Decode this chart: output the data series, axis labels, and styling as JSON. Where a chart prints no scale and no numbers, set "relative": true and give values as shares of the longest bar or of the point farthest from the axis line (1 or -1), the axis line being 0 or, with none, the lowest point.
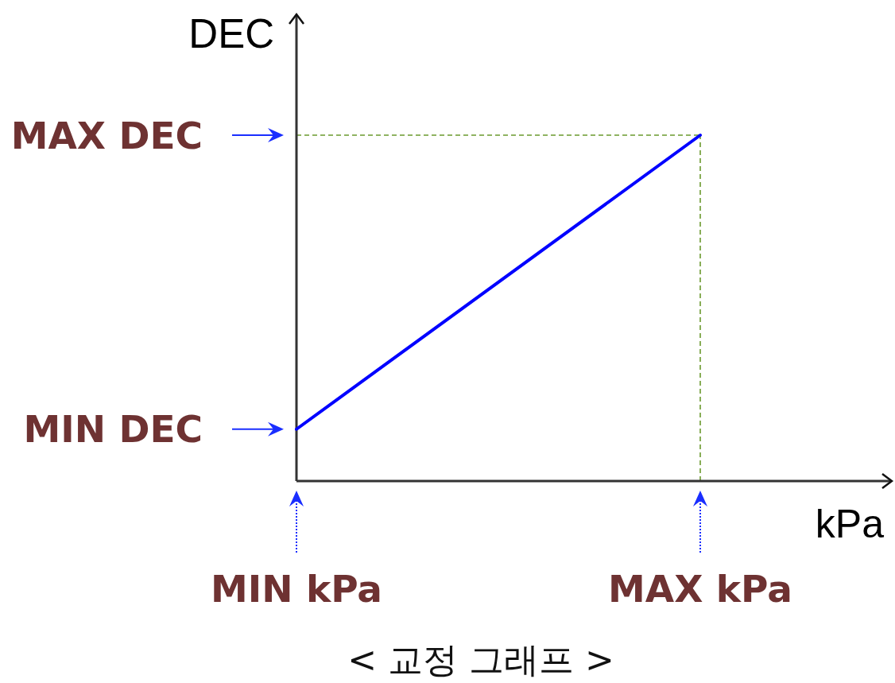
{
  "chart_data": {
    "type": "line",
    "title": "< 교정 그래프 >",
    "xlabel": "kPa",
    "ylabel": "DEC",
    "relative": true,
    "categories": [
      "MIN kPa",
      "MAX kPa"
    ],
    "series": [
      {
        "color": "#0000ff",
        "values": [
          0.15,
          1
        ]
      }
    ],
    "ref_lines": [
      {
        "axis": "y",
        "value": 1,
        "label": "MAX DEC",
        "color": "#6b9a2e",
        "line_style": "dashed"
      },
      {
        "axis": "x",
        "value": "MAX kPa",
        "color": "#6b9a2e",
        "line_style": "dashed"
      }
    ],
    "annotations": [
      {
        "text": "MIN DEC",
        "x": "MIN kPa",
        "y": 0.15
      }
    ],
    "marker": "none",
    "line_style": "solid"
  }
}
